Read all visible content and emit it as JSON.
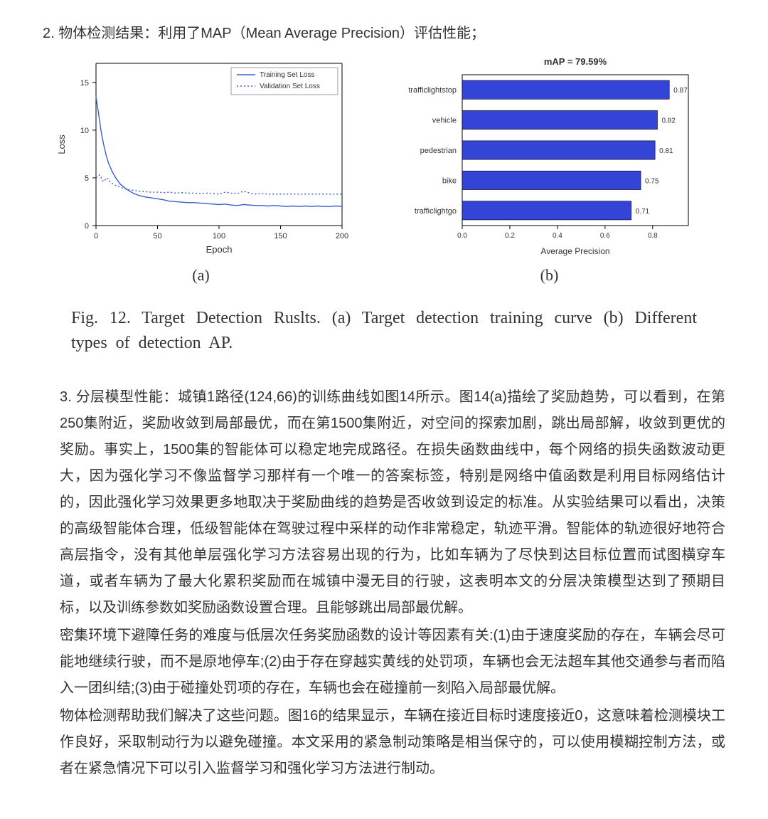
{
  "section2": {
    "heading": "2. 物体检测结果：利用了MAP（Mean Average Precision）评估性能；"
  },
  "loss_chart": {
    "type": "line",
    "xlabel": "Epoch",
    "ylabel": "Loss",
    "xlim": [
      0,
      200
    ],
    "ylim": [
      0,
      17
    ],
    "xticks": [
      0,
      50,
      100,
      150,
      200
    ],
    "yticks": [
      0,
      5,
      10,
      15
    ],
    "label_fontsize": 13,
    "tick_fontsize": 11,
    "axis_color": "#000000",
    "background_color": "#ffffff",
    "legend": {
      "position": "top-right",
      "border_color": "#888888",
      "items": [
        {
          "label": "Training Set Loss",
          "color": "#3a5fcd",
          "style": "solid"
        },
        {
          "label": "Validation Set Loss",
          "color": "#3a5fcd",
          "style": "dotted"
        }
      ]
    },
    "series": {
      "training": {
        "color": "#3a5fcd",
        "style": "solid",
        "line_width": 1.4,
        "points": [
          [
            0,
            13.5
          ],
          [
            2,
            11.8
          ],
          [
            4,
            10.0
          ],
          [
            6,
            8.6
          ],
          [
            8,
            7.5
          ],
          [
            10,
            6.6
          ],
          [
            13,
            5.7
          ],
          [
            16,
            5.0
          ],
          [
            20,
            4.3
          ],
          [
            25,
            3.8
          ],
          [
            30,
            3.4
          ],
          [
            35,
            3.15
          ],
          [
            40,
            3.0
          ],
          [
            45,
            2.9
          ],
          [
            50,
            2.8
          ],
          [
            55,
            2.7
          ],
          [
            60,
            2.55
          ],
          [
            65,
            2.5
          ],
          [
            70,
            2.45
          ],
          [
            75,
            2.4
          ],
          [
            80,
            2.4
          ],
          [
            85,
            2.35
          ],
          [
            90,
            2.3
          ],
          [
            95,
            2.25
          ],
          [
            100,
            2.2
          ],
          [
            105,
            2.25
          ],
          [
            110,
            2.15
          ],
          [
            115,
            2.1
          ],
          [
            120,
            2.2
          ],
          [
            125,
            2.15
          ],
          [
            130,
            2.1
          ],
          [
            135,
            2.1
          ],
          [
            140,
            2.05
          ],
          [
            145,
            2.1
          ],
          [
            150,
            2.05
          ],
          [
            155,
            2.0
          ],
          [
            160,
            2.05
          ],
          [
            165,
            2.0
          ],
          [
            170,
            2.05
          ],
          [
            175,
            2.0
          ],
          [
            180,
            2.05
          ],
          [
            185,
            2.0
          ],
          [
            190,
            2.0
          ],
          [
            195,
            2.05
          ],
          [
            200,
            2.0
          ]
        ]
      },
      "validation": {
        "color": "#3a5fcd",
        "style": "dotted",
        "line_width": 1.4,
        "points": [
          [
            0,
            5.0
          ],
          [
            3,
            5.3
          ],
          [
            6,
            4.6
          ],
          [
            9,
            5.0
          ],
          [
            12,
            4.5
          ],
          [
            16,
            4.2
          ],
          [
            20,
            4.0
          ],
          [
            25,
            3.8
          ],
          [
            30,
            3.7
          ],
          [
            35,
            3.6
          ],
          [
            40,
            3.55
          ],
          [
            45,
            3.5
          ],
          [
            50,
            3.5
          ],
          [
            55,
            3.45
          ],
          [
            60,
            3.5
          ],
          [
            65,
            3.4
          ],
          [
            70,
            3.45
          ],
          [
            75,
            3.4
          ],
          [
            80,
            3.4
          ],
          [
            85,
            3.35
          ],
          [
            90,
            3.4
          ],
          [
            95,
            3.35
          ],
          [
            100,
            3.3
          ],
          [
            105,
            3.5
          ],
          [
            110,
            3.4
          ],
          [
            115,
            3.35
          ],
          [
            120,
            3.6
          ],
          [
            125,
            3.4
          ],
          [
            130,
            3.3
          ],
          [
            135,
            3.35
          ],
          [
            140,
            3.3
          ],
          [
            145,
            3.3
          ],
          [
            150,
            3.3
          ],
          [
            155,
            3.3
          ],
          [
            160,
            3.3
          ],
          [
            165,
            3.3
          ],
          [
            170,
            3.3
          ],
          [
            175,
            3.3
          ],
          [
            180,
            3.3
          ],
          [
            185,
            3.3
          ],
          [
            190,
            3.3
          ],
          [
            195,
            3.3
          ],
          [
            200,
            3.3
          ]
        ]
      }
    }
  },
  "ap_chart": {
    "type": "bar-horizontal",
    "title": "mAP = 79.59%",
    "title_fontsize": 13,
    "xlabel": "Average Precision",
    "label_fontsize": 12,
    "tick_fontsize": 10,
    "xlim": [
      0.0,
      0.95
    ],
    "xticks": [
      0.0,
      0.2,
      0.4,
      0.6,
      0.8
    ],
    "bar_color": "#3344d6",
    "bar_border": "#000000",
    "plot_border_color": "#000000",
    "background_color": "#ffffff",
    "value_label_color": "#333333",
    "categories": [
      "trafficlightstop",
      "vehicle",
      "pedestrian",
      "bike",
      "trafficlightgo"
    ],
    "values": [
      0.87,
      0.82,
      0.81,
      0.75,
      0.71
    ]
  },
  "sub_labels": {
    "a": "(a)",
    "b": "(b)"
  },
  "caption": "Fig. 12.   Target Detection Ruslts. (a) Target detection training curve (b) Different types of detection AP.",
  "section3": {
    "heading_inline": "3. 分层模型性能：",
    "paragraphs": [
      "城镇1路径(124,66)的训练曲线如图14所示。图14(a)描绘了奖励趋势，可以看到，在第250集附近，奖励收敛到局部最优，而在第1500集附近，对空间的探索加剧，跳出局部解，收敛到更优的奖励。事实上，1500集的智能体可以稳定地完成路径。在损失函数曲线中，每个网络的损失函数波动更大，因为强化学习不像监督学习那样有一个唯一的答案标签，特别是网络中值函数是利用目标网络估计的，因此强化学习效果更多地取决于奖励曲线的趋势是否收敛到设定的标准。从实验结果可以看出，决策的高级智能体合理，低级智能体在驾驶过程中采样的动作非常稳定，轨迹平滑。智能体的轨迹很好地符合高层指令，没有其他单层强化学习方法容易出现的行为，比如车辆为了尽快到达目标位置而试图横穿车道，或者车辆为了最大化累积奖励而在城镇中漫无目的行驶，这表明本文的分层决策模型达到了预期目标，以及训练参数如奖励函数设置合理。且能够跳出局部最优解。",
      "密集环境下避障任务的难度与低层次任务奖励函数的设计等因素有关:(1)由于速度奖励的存在，车辆会尽可能地继续行驶，而不是原地停车;(2)由于存在穿越实黄线的处罚项，车辆也会无法超车其他交通参与者而陷入一团纠结;(3)由于碰撞处罚项的存在，车辆也会在碰撞前一刻陷入局部最优解。",
      "物体检测帮助我们解决了这些问题。图16的结果显示，车辆在接近目标时速度接近0，这意味着检测模块工作良好，采取制动行为以避免碰撞。本文采用的紧急制动策略是相当保守的，可以使用模糊控制方法，或者在紧急情况下可以引入监督学习和强化学习方法进行制动。"
    ]
  }
}
